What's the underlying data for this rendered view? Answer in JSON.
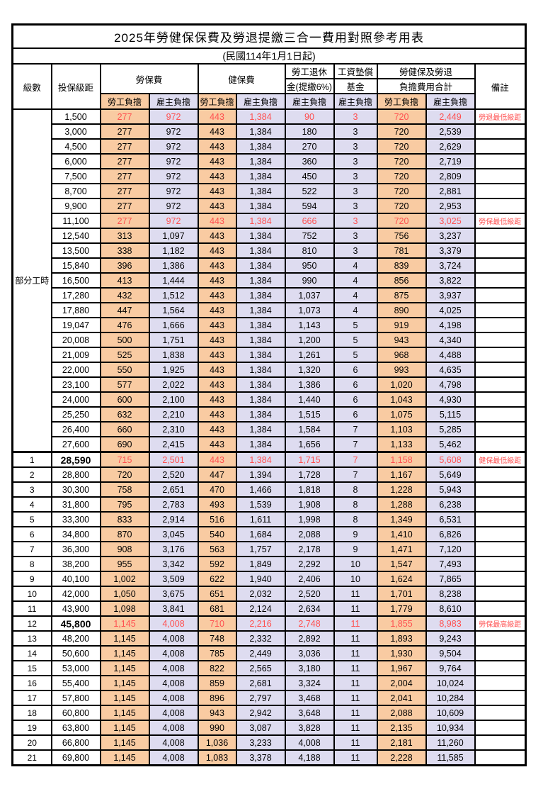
{
  "title": "2025年勞健保保費及勞退提繳三合一費用對照參考用表",
  "subtitle": "(民國114年1月1日起)",
  "colors": {
    "employee_bg": "#F9CBA2",
    "employer_bg": "#DEDCF0",
    "highlight_text": "#FF5050",
    "border": "#000000"
  },
  "header": {
    "level": "級數",
    "bracket": "投保級距",
    "labor_fee": "勞保費",
    "health_fee": "健保費",
    "pension_line1": "勞工退休",
    "pension_line2": "金(提繳6%)",
    "wage_fund_line1": "工資墊償",
    "wage_fund_line2": "基金",
    "total_line1": "勞健保及勞退",
    "total_line2": "負擔費用合計",
    "remark": "備註",
    "employee": "勞工負擔",
    "employer": "雇主負擔"
  },
  "part_time_label": "部分工時",
  "part_time_row_count": 23,
  "rows": [
    {
      "level": "",
      "bracket": "1,500",
      "values": [
        "277",
        "972",
        "443",
        "1,384",
        "90",
        "3",
        "720",
        "2,449"
      ],
      "remark": "勞退最低級距",
      "highlight": true,
      "bold_bracket": false,
      "section_start": false
    },
    {
      "level": "",
      "bracket": "3,000",
      "values": [
        "277",
        "972",
        "443",
        "1,384",
        "180",
        "3",
        "720",
        "2,539"
      ],
      "remark": "",
      "highlight": false,
      "bold_bracket": false,
      "section_start": false
    },
    {
      "level": "",
      "bracket": "4,500",
      "values": [
        "277",
        "972",
        "443",
        "1,384",
        "270",
        "3",
        "720",
        "2,629"
      ],
      "remark": "",
      "highlight": false,
      "bold_bracket": false,
      "section_start": false
    },
    {
      "level": "",
      "bracket": "6,000",
      "values": [
        "277",
        "972",
        "443",
        "1,384",
        "360",
        "3",
        "720",
        "2,719"
      ],
      "remark": "",
      "highlight": false,
      "bold_bracket": false,
      "section_start": false
    },
    {
      "level": "",
      "bracket": "7,500",
      "values": [
        "277",
        "972",
        "443",
        "1,384",
        "450",
        "3",
        "720",
        "2,809"
      ],
      "remark": "",
      "highlight": false,
      "bold_bracket": false,
      "section_start": false
    },
    {
      "level": "",
      "bracket": "8,700",
      "values": [
        "277",
        "972",
        "443",
        "1,384",
        "522",
        "3",
        "720",
        "2,881"
      ],
      "remark": "",
      "highlight": false,
      "bold_bracket": false,
      "section_start": false
    },
    {
      "level": "",
      "bracket": "9,900",
      "values": [
        "277",
        "972",
        "443",
        "1,384",
        "594",
        "3",
        "720",
        "2,953"
      ],
      "remark": "",
      "highlight": false,
      "bold_bracket": false,
      "section_start": false
    },
    {
      "level": "",
      "bracket": "11,100",
      "values": [
        "277",
        "972",
        "443",
        "1,384",
        "666",
        "3",
        "720",
        "3,025"
      ],
      "remark": "勞保最低級距",
      "highlight": true,
      "bold_bracket": false,
      "section_start": false
    },
    {
      "level": "",
      "bracket": "12,540",
      "values": [
        "313",
        "1,097",
        "443",
        "1,384",
        "752",
        "3",
        "756",
        "3,237"
      ],
      "remark": "",
      "highlight": false,
      "bold_bracket": false,
      "section_start": false
    },
    {
      "level": "",
      "bracket": "13,500",
      "values": [
        "338",
        "1,182",
        "443",
        "1,384",
        "810",
        "3",
        "781",
        "3,379"
      ],
      "remark": "",
      "highlight": false,
      "bold_bracket": false,
      "section_start": false
    },
    {
      "level": "",
      "bracket": "15,840",
      "values": [
        "396",
        "1,386",
        "443",
        "1,384",
        "950",
        "4",
        "839",
        "3,724"
      ],
      "remark": "",
      "highlight": false,
      "bold_bracket": false,
      "section_start": false
    },
    {
      "level": "",
      "bracket": "16,500",
      "values": [
        "413",
        "1,444",
        "443",
        "1,384",
        "990",
        "4",
        "856",
        "3,822"
      ],
      "remark": "",
      "highlight": false,
      "bold_bracket": false,
      "section_start": false
    },
    {
      "level": "",
      "bracket": "17,280",
      "values": [
        "432",
        "1,512",
        "443",
        "1,384",
        "1,037",
        "4",
        "875",
        "3,937"
      ],
      "remark": "",
      "highlight": false,
      "bold_bracket": false,
      "section_start": false
    },
    {
      "level": "",
      "bracket": "17,880",
      "values": [
        "447",
        "1,564",
        "443",
        "1,384",
        "1,073",
        "4",
        "890",
        "4,025"
      ],
      "remark": "",
      "highlight": false,
      "bold_bracket": false,
      "section_start": false
    },
    {
      "level": "",
      "bracket": "19,047",
      "values": [
        "476",
        "1,666",
        "443",
        "1,384",
        "1,143",
        "5",
        "919",
        "4,198"
      ],
      "remark": "",
      "highlight": false,
      "bold_bracket": false,
      "section_start": false
    },
    {
      "level": "",
      "bracket": "20,008",
      "values": [
        "500",
        "1,751",
        "443",
        "1,384",
        "1,200",
        "5",
        "943",
        "4,340"
      ],
      "remark": "",
      "highlight": false,
      "bold_bracket": false,
      "section_start": false
    },
    {
      "level": "",
      "bracket": "21,009",
      "values": [
        "525",
        "1,838",
        "443",
        "1,384",
        "1,261",
        "5",
        "968",
        "4,488"
      ],
      "remark": "",
      "highlight": false,
      "bold_bracket": false,
      "section_start": false
    },
    {
      "level": "",
      "bracket": "22,000",
      "values": [
        "550",
        "1,925",
        "443",
        "1,384",
        "1,320",
        "6",
        "993",
        "4,635"
      ],
      "remark": "",
      "highlight": false,
      "bold_bracket": false,
      "section_start": false
    },
    {
      "level": "",
      "bracket": "23,100",
      "values": [
        "577",
        "2,022",
        "443",
        "1,384",
        "1,386",
        "6",
        "1,020",
        "4,798"
      ],
      "remark": "",
      "highlight": false,
      "bold_bracket": false,
      "section_start": false
    },
    {
      "level": "",
      "bracket": "24,000",
      "values": [
        "600",
        "2,100",
        "443",
        "1,384",
        "1,440",
        "6",
        "1,043",
        "4,930"
      ],
      "remark": "",
      "highlight": false,
      "bold_bracket": false,
      "section_start": false
    },
    {
      "level": "",
      "bracket": "25,250",
      "values": [
        "632",
        "2,210",
        "443",
        "1,384",
        "1,515",
        "6",
        "1,075",
        "5,115"
      ],
      "remark": "",
      "highlight": false,
      "bold_bracket": false,
      "section_start": false
    },
    {
      "level": "",
      "bracket": "26,400",
      "values": [
        "660",
        "2,310",
        "443",
        "1,384",
        "1,584",
        "7",
        "1,103",
        "5,285"
      ],
      "remark": "",
      "highlight": false,
      "bold_bracket": false,
      "section_start": false
    },
    {
      "level": "",
      "bracket": "27,600",
      "values": [
        "690",
        "2,415",
        "443",
        "1,384",
        "1,656",
        "7",
        "1,133",
        "5,462"
      ],
      "remark": "",
      "highlight": false,
      "bold_bracket": false,
      "section_start": false
    },
    {
      "level": "1",
      "bracket": "28,590",
      "values": [
        "715",
        "2,501",
        "443",
        "1,384",
        "1,715",
        "7",
        "1,158",
        "5,608"
      ],
      "remark": "健保最低級距",
      "highlight": true,
      "bold_bracket": true,
      "section_start": true
    },
    {
      "level": "2",
      "bracket": "28,800",
      "values": [
        "720",
        "2,520",
        "447",
        "1,394",
        "1,728",
        "7",
        "1,167",
        "5,649"
      ],
      "remark": "",
      "highlight": false,
      "bold_bracket": false,
      "section_start": false
    },
    {
      "level": "3",
      "bracket": "30,300",
      "values": [
        "758",
        "2,651",
        "470",
        "1,466",
        "1,818",
        "8",
        "1,228",
        "5,943"
      ],
      "remark": "",
      "highlight": false,
      "bold_bracket": false,
      "section_start": false
    },
    {
      "level": "4",
      "bracket": "31,800",
      "values": [
        "795",
        "2,783",
        "493",
        "1,539",
        "1,908",
        "8",
        "1,288",
        "6,238"
      ],
      "remark": "",
      "highlight": false,
      "bold_bracket": false,
      "section_start": false
    },
    {
      "level": "5",
      "bracket": "33,300",
      "values": [
        "833",
        "2,914",
        "516",
        "1,611",
        "1,998",
        "8",
        "1,349",
        "6,531"
      ],
      "remark": "",
      "highlight": false,
      "bold_bracket": false,
      "section_start": false
    },
    {
      "level": "6",
      "bracket": "34,800",
      "values": [
        "870",
        "3,045",
        "540",
        "1,684",
        "2,088",
        "9",
        "1,410",
        "6,826"
      ],
      "remark": "",
      "highlight": false,
      "bold_bracket": false,
      "section_start": false
    },
    {
      "level": "7",
      "bracket": "36,300",
      "values": [
        "908",
        "3,176",
        "563",
        "1,757",
        "2,178",
        "9",
        "1,471",
        "7,120"
      ],
      "remark": "",
      "highlight": false,
      "bold_bracket": false,
      "section_start": false
    },
    {
      "level": "8",
      "bracket": "38,200",
      "values": [
        "955",
        "3,342",
        "592",
        "1,849",
        "2,292",
        "10",
        "1,547",
        "7,493"
      ],
      "remark": "",
      "highlight": false,
      "bold_bracket": false,
      "section_start": false
    },
    {
      "level": "9",
      "bracket": "40,100",
      "values": [
        "1,002",
        "3,509",
        "622",
        "1,940",
        "2,406",
        "10",
        "1,624",
        "7,865"
      ],
      "remark": "",
      "highlight": false,
      "bold_bracket": false,
      "section_start": false
    },
    {
      "level": "10",
      "bracket": "42,000",
      "values": [
        "1,050",
        "3,675",
        "651",
        "2,032",
        "2,520",
        "11",
        "1,701",
        "8,238"
      ],
      "remark": "",
      "highlight": false,
      "bold_bracket": false,
      "section_start": false
    },
    {
      "level": "11",
      "bracket": "43,900",
      "values": [
        "1,098",
        "3,841",
        "681",
        "2,124",
        "2,634",
        "11",
        "1,779",
        "8,610"
      ],
      "remark": "",
      "highlight": false,
      "bold_bracket": false,
      "section_start": false
    },
    {
      "level": "12",
      "bracket": "45,800",
      "values": [
        "1,145",
        "4,008",
        "710",
        "2,216",
        "2,748",
        "11",
        "1,855",
        "8,983"
      ],
      "remark": "勞保最高級距",
      "highlight": true,
      "bold_bracket": true,
      "section_start": false
    },
    {
      "level": "13",
      "bracket": "48,200",
      "values": [
        "1,145",
        "4,008",
        "748",
        "2,332",
        "2,892",
        "11",
        "1,893",
        "9,243"
      ],
      "remark": "",
      "highlight": false,
      "bold_bracket": false,
      "section_start": false
    },
    {
      "level": "14",
      "bracket": "50,600",
      "values": [
        "1,145",
        "4,008",
        "785",
        "2,449",
        "3,036",
        "11",
        "1,930",
        "9,504"
      ],
      "remark": "",
      "highlight": false,
      "bold_bracket": false,
      "section_start": false
    },
    {
      "level": "15",
      "bracket": "53,000",
      "values": [
        "1,145",
        "4,008",
        "822",
        "2,565",
        "3,180",
        "11",
        "1,967",
        "9,764"
      ],
      "remark": "",
      "highlight": false,
      "bold_bracket": false,
      "section_start": false
    },
    {
      "level": "16",
      "bracket": "55,400",
      "values": [
        "1,145",
        "4,008",
        "859",
        "2,681",
        "3,324",
        "11",
        "2,004",
        "10,024"
      ],
      "remark": "",
      "highlight": false,
      "bold_bracket": false,
      "section_start": false
    },
    {
      "level": "17",
      "bracket": "57,800",
      "values": [
        "1,145",
        "4,008",
        "896",
        "2,797",
        "3,468",
        "11",
        "2,041",
        "10,284"
      ],
      "remark": "",
      "highlight": false,
      "bold_bracket": false,
      "section_start": false
    },
    {
      "level": "18",
      "bracket": "60,800",
      "values": [
        "1,145",
        "4,008",
        "943",
        "2,942",
        "3,648",
        "11",
        "2,088",
        "10,609"
      ],
      "remark": "",
      "highlight": false,
      "bold_bracket": false,
      "section_start": false
    },
    {
      "level": "19",
      "bracket": "63,800",
      "values": [
        "1,145",
        "4,008",
        "990",
        "3,087",
        "3,828",
        "11",
        "2,135",
        "10,934"
      ],
      "remark": "",
      "highlight": false,
      "bold_bracket": false,
      "section_start": false
    },
    {
      "level": "20",
      "bracket": "66,800",
      "values": [
        "1,145",
        "4,008",
        "1,036",
        "3,233",
        "4,008",
        "11",
        "2,181",
        "11,260"
      ],
      "remark": "",
      "highlight": false,
      "bold_bracket": false,
      "section_start": false
    },
    {
      "level": "21",
      "bracket": "69,800",
      "values": [
        "1,145",
        "4,008",
        "1,083",
        "3,378",
        "4,188",
        "11",
        "2,228",
        "11,585"
      ],
      "remark": "",
      "highlight": false,
      "bold_bracket": false,
      "section_start": false
    }
  ],
  "value_column_names": [
    "labor-employee",
    "labor-employer",
    "health-employee",
    "health-employer",
    "pension-employer",
    "fund-employer",
    "total-employee",
    "total-employer"
  ]
}
